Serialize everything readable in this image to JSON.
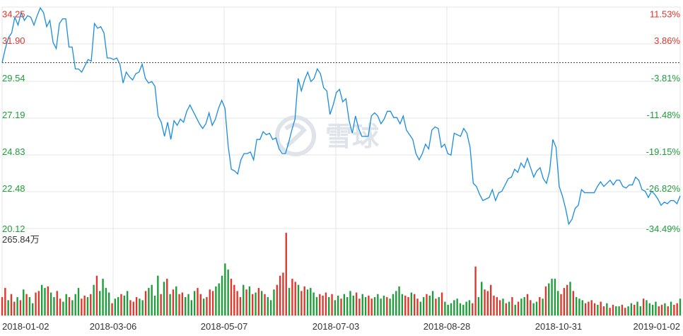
{
  "colors": {
    "price_line": "#1a8ce0",
    "up": "#e0362b",
    "down": "#1e9e3a",
    "grid": "#e4e4e4",
    "baseline": "#333333",
    "axis_text": "#333333",
    "watermark": "#dfe3ea"
  },
  "watermark": {
    "icon": "snowball-logo-icon",
    "text": "雪球"
  },
  "chart_data": {
    "type": "line",
    "x_tick_labels": [
      "2018-01-02",
      "2018-03-06",
      "2018-05-07",
      "2018-07-03",
      "2018-08-28",
      "2018-10-31",
      "2019-01-02"
    ],
    "y_left_tick_labels": [
      "34.25",
      "31.90",
      "29.54",
      "27.19",
      "24.83",
      "22.48",
      "20.12"
    ],
    "y_right_tick_labels": [
      "11.53%",
      "3.86%",
      "-3.81%",
      "-11.48%",
      "-19.15%",
      "-26.82%",
      "-34.49%"
    ],
    "ylim": [
      20.12,
      34.25
    ],
    "prev_close": 30.7,
    "grid": true,
    "price_series": {
      "values": [
        30.7,
        31.6,
        32.3,
        32.6,
        33.6,
        33.1,
        33.9,
        33.4,
        33.7,
        33.6,
        33.1,
        33.7,
        34.2,
        33.9,
        33.0,
        33.4,
        32.0,
        31.6,
        33.2,
        33.5,
        33.5,
        31.7,
        31.7,
        30.3,
        30.3,
        30.1,
        30.5,
        30.9,
        30.8,
        33.2,
        32.9,
        33.0,
        32.6,
        31.0,
        31.0,
        30.9,
        31.0,
        30.6,
        29.4,
        30.1,
        29.8,
        29.6,
        30.0,
        30.1,
        30.6,
        29.7,
        29.4,
        29.5,
        29.2,
        27.3,
        26.9,
        26.0,
        26.9,
        25.8,
        27.0,
        26.7,
        27.1,
        26.9,
        27.6,
        28.0,
        27.6,
        27.2,
        26.8,
        26.5,
        26.8,
        27.5,
        26.7,
        27.1,
        27.8,
        28.3,
        27.8,
        25.4,
        23.9,
        23.8,
        23.6,
        24.5,
        24.9,
        24.9,
        25.0,
        24.5,
        25.8,
        25.8,
        26.3,
        26.1,
        26.2,
        25.8,
        25.9,
        25.2,
        24.9,
        24.9,
        25.6,
        26.4,
        27.1,
        29.7,
        28.9,
        29.6,
        30.1,
        29.5,
        29.7,
        30.3,
        30.0,
        29.1,
        28.9,
        27.4,
        28.0,
        28.8,
        29.0,
        28.2,
        28.4,
        27.0,
        26.2,
        27.3,
        26.5,
        26.0,
        26.0,
        26.0,
        27.3,
        27.5,
        27.3,
        26.8,
        27.1,
        27.6,
        27.6,
        27.2,
        27.2,
        26.8,
        27.3,
        26.4,
        26.1,
        25.8,
        24.9,
        24.5,
        24.9,
        25.5,
        25.2,
        26.4,
        26.6,
        26.5,
        25.3,
        25.5,
        24.9,
        24.8,
        26.2,
        26.1,
        26.0,
        26.5,
        26.2,
        25.3,
        23.0,
        22.8,
        22.3,
        21.9,
        22.0,
        22.1,
        22.6,
        21.9,
        22.4,
        22.5,
        22.9,
        23.3,
        23.4,
        23.9,
        23.7,
        24.3,
        24.0,
        24.6,
        24.0,
        23.4,
        23.8,
        24.0,
        23.3,
        23.0,
        23.8,
        25.8,
        25.3,
        22.8,
        22.2,
        21.4,
        20.4,
        20.7,
        21.4,
        21.6,
        22.6,
        22.4,
        22.4,
        22.4,
        22.4,
        22.8,
        23.1,
        22.8,
        23.0,
        23.2,
        22.9,
        23.2,
        23.2,
        22.8,
        22.7,
        22.9,
        22.9,
        23.4,
        23.2,
        22.6,
        22.5,
        22.1,
        22.5,
        22.3,
        22.0,
        21.6,
        21.8,
        21.7,
        21.9,
        21.9,
        21.7,
        22.2
      ]
    },
    "volume_series": {
      "max_label": "265.84万",
      "max": 265.84,
      "unit": "万",
      "values": [
        60,
        90,
        50,
        70,
        45,
        60,
        50,
        85,
        70,
        60,
        40,
        75,
        80,
        100,
        90,
        95,
        75,
        60,
        80,
        55,
        45,
        70,
        60,
        50,
        70,
        90,
        55,
        65,
        60,
        70,
        100,
        130,
        80,
        120,
        90,
        75,
        40,
        55,
        60,
        70,
        65,
        80,
        50,
        45,
        60,
        55,
        50,
        80,
        90,
        100,
        65,
        130,
        70,
        110,
        120,
        70,
        85,
        95,
        70,
        75,
        60,
        70,
        50,
        80,
        90,
        70,
        55,
        60,
        85,
        80,
        95,
        105,
        130,
        170,
        150,
        120,
        100,
        80,
        60,
        100,
        85,
        95,
        70,
        75,
        90,
        80,
        70,
        60,
        50,
        85,
        100,
        130,
        140,
        270,
        90,
        120,
        110,
        100,
        80,
        95,
        85,
        90,
        75,
        60,
        70,
        65,
        75,
        60,
        70,
        50,
        65,
        55,
        70,
        60,
        80,
        65,
        75,
        55,
        70,
        60,
        65,
        55,
        60,
        70,
        55,
        65,
        60,
        55,
        70,
        80,
        95,
        70,
        65,
        60,
        75,
        70,
        55,
        45,
        60,
        70,
        65,
        80,
        55,
        60,
        75,
        45,
        35,
        40,
        50,
        55,
        40,
        35,
        45,
        50,
        40,
        160,
        60,
        110,
        85,
        80,
        100,
        65,
        60,
        50,
        55,
        40,
        45,
        60,
        35,
        45,
        55,
        60,
        70,
        50,
        40,
        45,
        60,
        55,
        95,
        105,
        120,
        120,
        80,
        70,
        90,
        100,
        110,
        80,
        60,
        55,
        50,
        40,
        45,
        50,
        40,
        35,
        45,
        30,
        40,
        25,
        35,
        30,
        30,
        35,
        25,
        30,
        40,
        35,
        45,
        30,
        55,
        50,
        40,
        35,
        45,
        30,
        35,
        40,
        30,
        45,
        35,
        40,
        55
      ],
      "directions": [
        "u",
        "u",
        "d",
        "u",
        "u",
        "d",
        "u",
        "d",
        "u",
        "d",
        "d",
        "u",
        "u",
        "d",
        "d",
        "u",
        "d",
        "d",
        "u",
        "u",
        "d",
        "d",
        "u",
        "d",
        "d",
        "d",
        "u",
        "u",
        "d",
        "u",
        "d",
        "u",
        "d",
        "d",
        "d",
        "d",
        "u",
        "d",
        "d",
        "u",
        "d",
        "d",
        "u",
        "u",
        "u",
        "d",
        "d",
        "u",
        "d",
        "d",
        "d",
        "d",
        "u",
        "d",
        "u",
        "d",
        "u",
        "d",
        "u",
        "u",
        "d",
        "d",
        "d",
        "d",
        "u",
        "u",
        "d",
        "u",
        "u",
        "u",
        "d",
        "d",
        "d",
        "d",
        "d",
        "u",
        "u",
        "u",
        "u",
        "d",
        "u",
        "d",
        "u",
        "d",
        "u",
        "d",
        "u",
        "d",
        "d",
        "d",
        "u",
        "u",
        "u",
        "u",
        "d",
        "u",
        "u",
        "d",
        "u",
        "u",
        "d",
        "d",
        "d",
        "d",
        "u",
        "u",
        "u",
        "d",
        "u",
        "d",
        "d",
        "u",
        "d",
        "d",
        "d",
        "d",
        "u",
        "u",
        "d",
        "d",
        "u",
        "u",
        "d",
        "d",
        "d",
        "d",
        "u",
        "d",
        "d",
        "d",
        "d",
        "d",
        "u",
        "u",
        "d",
        "u",
        "u",
        "d",
        "d",
        "u",
        "d",
        "d",
        "u",
        "d",
        "u",
        "d",
        "d",
        "d",
        "d",
        "d",
        "d",
        "d",
        "d",
        "d",
        "u",
        "u",
        "d",
        "d",
        "u",
        "u",
        "u",
        "u",
        "u",
        "u",
        "d",
        "u",
        "d",
        "u",
        "d",
        "u",
        "d",
        "d",
        "u",
        "u",
        "d",
        "d",
        "u",
        "d",
        "u",
        "d",
        "d",
        "d",
        "d",
        "u",
        "u",
        "u",
        "d",
        "u",
        "d",
        "d",
        "d",
        "u",
        "u",
        "u",
        "u",
        "d",
        "u",
        "u",
        "d",
        "u",
        "u",
        "d",
        "d",
        "u",
        "u",
        "d",
        "d",
        "u",
        "d",
        "d",
        "u",
        "d",
        "d",
        "d",
        "d",
        "u",
        "u",
        "d",
        "u",
        "d",
        "u",
        "u"
      ]
    }
  }
}
